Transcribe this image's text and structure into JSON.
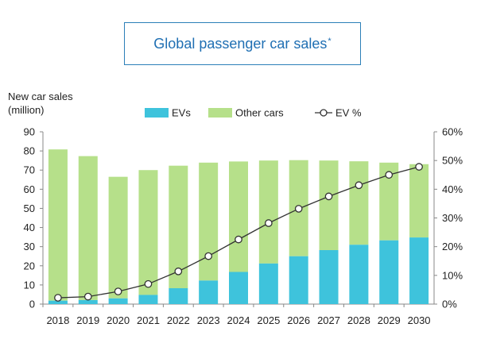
{
  "chart_data": {
    "type": "bar",
    "title": "Global passenger car sales",
    "title_mark": "*",
    "ylabel_line1": "New car sales",
    "ylabel_line2": "(million)",
    "categories": [
      "2018",
      "2019",
      "2020",
      "2021",
      "2022",
      "2023",
      "2024",
      "2025",
      "2026",
      "2027",
      "2028",
      "2029",
      "2030"
    ],
    "series": [
      {
        "name": "EVs",
        "type": "bar",
        "stack": "sales",
        "color": "#3ec3dc",
        "values": [
          1.8,
          2.1,
          3.0,
          4.8,
          8.3,
          12.3,
          16.8,
          21.2,
          25.0,
          28.2,
          31.0,
          33.3,
          34.8
        ]
      },
      {
        "name": "Other cars",
        "type": "bar",
        "stack": "sales",
        "color": "#b6e08a",
        "values": [
          79.0,
          75.2,
          63.5,
          65.2,
          64.0,
          61.6,
          57.7,
          53.8,
          50.2,
          46.8,
          43.6,
          40.6,
          38.3
        ]
      },
      {
        "name": "EV %",
        "type": "line",
        "axis": "right",
        "color": "#333333",
        "values": [
          2.2,
          2.6,
          4.4,
          7.0,
          11.4,
          16.7,
          22.5,
          28.2,
          33.2,
          37.5,
          41.4,
          45.0,
          47.8
        ]
      }
    ],
    "ylim": [
      0,
      90
    ],
    "yticks": [
      0,
      10,
      20,
      30,
      40,
      50,
      60,
      70,
      80,
      90
    ],
    "y2lim": [
      0,
      60
    ],
    "y2ticks": [
      "0%",
      "10%",
      "20%",
      "30%",
      "40%",
      "50%",
      "60%"
    ],
    "grid": false,
    "legend_position": "top"
  }
}
